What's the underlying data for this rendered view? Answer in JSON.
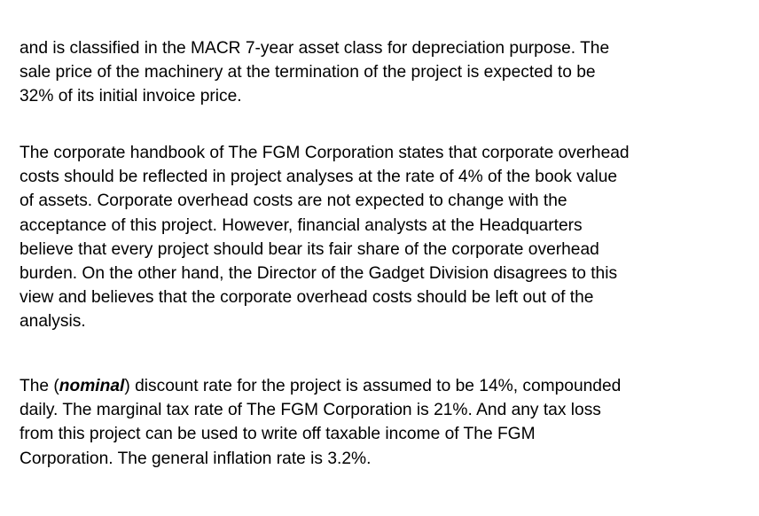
{
  "document": {
    "paragraphs": [
      {
        "lines": [
          "and is classified in the MACR 7-year asset class for depreciation purpose.  The",
          "sale price of the machinery at the termination of the project is expected to be",
          "32% of its initial invoice price."
        ]
      },
      {
        "lines": [
          "The corporate handbook of The FGM Corporation states that corporate overhead",
          "costs should be reflected in project analyses at the rate of 4% of the book value",
          "of assets.  Corporate overhead costs are not expected to change with the",
          "acceptance of this project.  However, financial analysts at the Headquarters",
          "believe that every project should bear its fair share of the corporate overhead",
          "burden.  On the other hand, the Director of the Gadget Division disagrees to this",
          "view and believes that the corporate overhead costs should be left out of the",
          "analysis."
        ]
      },
      {
        "line1_prefix": "The (",
        "line1_emphasis": "nominal",
        "line1_suffix": ") discount rate for the project is assumed to be 14%, compounded",
        "lines": [
          "daily.  The marginal tax rate of The FGM Corporation is 21%.  And any tax loss",
          "from this project can be used to write off taxable income of The FGM",
          "Corporation.  The general inflation rate is 3.2%."
        ]
      }
    ]
  }
}
